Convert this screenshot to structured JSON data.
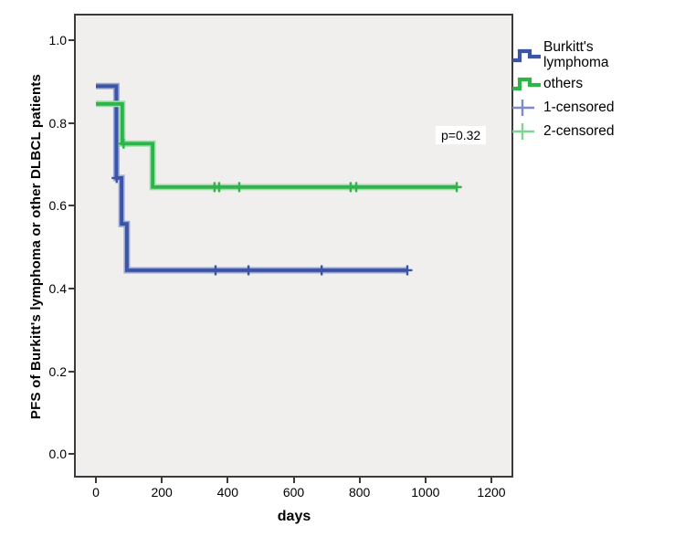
{
  "chart_data": {
    "type": "line",
    "subtype": "kaplan-meier-step-survival",
    "title": "",
    "xlabel": "days",
    "ylabel": "PFS of Burkitt's lymphoma or other DLBCL patients",
    "xlim": [
      -66.5,
      1266.5
    ],
    "ylim": [
      -0.057,
      1.064
    ],
    "grid": false,
    "plot_bg": "#f0efed",
    "axis_color": "#3b3b3b",
    "x_ticks": [
      {
        "v": 0,
        "label": "0"
      },
      {
        "v": 200,
        "label": "200"
      },
      {
        "v": 400,
        "label": "400"
      },
      {
        "v": 600,
        "label": "600"
      },
      {
        "v": 800,
        "label": "800"
      },
      {
        "v": 1000,
        "label": "1000"
      },
      {
        "v": 1200,
        "label": "1200"
      }
    ],
    "y_ticks": [
      {
        "v": 1.0,
        "label": "1.0"
      },
      {
        "v": 0.8,
        "label": "0.8"
      },
      {
        "v": 0.6,
        "label": "0.6"
      },
      {
        "v": 0.4,
        "label": "0.4"
      },
      {
        "v": 0.2,
        "label": "0.2"
      },
      {
        "v": 0.0,
        "label": "0.0"
      }
    ],
    "annotation": {
      "text": "p=0.32"
    },
    "series": [
      {
        "name": "Burkitt's lymphoma",
        "color": "#3b54a6",
        "halo": "#9aa6d2",
        "points": [
          [
            0,
            0.889
          ],
          [
            62,
            0.889
          ],
          [
            62,
            0.667
          ],
          [
            78,
            0.667
          ],
          [
            78,
            0.556
          ],
          [
            94,
            0.556
          ],
          [
            94,
            0.444
          ],
          [
            945,
            0.444
          ]
        ],
        "censored": [
          [
            63,
            0.667
          ],
          [
            363,
            0.444
          ],
          [
            463,
            0.444
          ],
          [
            685,
            0.444
          ],
          [
            945,
            0.444
          ]
        ]
      },
      {
        "name": "others",
        "color": "#2fb44a",
        "halo": "#a0dcad",
        "points": [
          [
            0,
            0.846
          ],
          [
            80,
            0.846
          ],
          [
            80,
            0.75
          ],
          [
            172,
            0.75
          ],
          [
            172,
            0.645
          ],
          [
            1095,
            0.645
          ]
        ],
        "censored": [
          [
            84,
            0.75
          ],
          [
            360,
            0.645
          ],
          [
            374,
            0.645
          ],
          [
            435,
            0.645
          ],
          [
            773,
            0.645
          ],
          [
            790,
            0.645
          ],
          [
            1095,
            0.645
          ]
        ]
      }
    ],
    "legend_position": "right",
    "legend": [
      {
        "label": "Burkitt's lymphoma",
        "symbol": "step",
        "color": "#3b54a6"
      },
      {
        "label": "others",
        "symbol": "step",
        "color": "#2fb44a"
      },
      {
        "label": "1-censored",
        "symbol": "plus",
        "color": "#7b8cc9"
      },
      {
        "label": "2-censored",
        "symbol": "plus",
        "color": "#7fd48f"
      }
    ]
  }
}
